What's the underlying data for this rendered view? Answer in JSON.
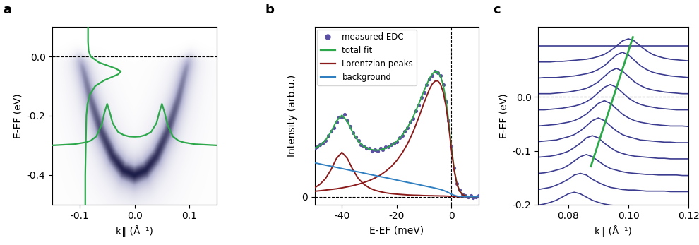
{
  "chart_data": [
    {
      "type": "image",
      "panel_label": "a",
      "x_label": "k∥ (Å⁻¹)",
      "y_label": "E-EF (eV)",
      "xlim": [
        -0.15,
        0.15
      ],
      "xticks": [
        -0.1,
        0.0,
        0.1
      ],
      "ylim": [
        -0.5,
        0.1
      ],
      "yticks": [
        -0.4,
        -0.2,
        0.0
      ],
      "hlines": [
        0
      ],
      "band": {
        "k": [
          -0.11,
          -0.1,
          -0.08,
          -0.06,
          -0.04,
          -0.02,
          0,
          0.02,
          0.04,
          0.06,
          0.08,
          0.1,
          0.11
        ],
        "energy": [
          0.084,
          0,
          -0.144,
          -0.256,
          -0.336,
          -0.384,
          -0.4,
          -0.384,
          -0.336,
          -0.256,
          -0.144,
          0,
          0.084
        ]
      },
      "series": [
        {
          "type": "line",
          "color": "#2ca84a",
          "x": [
            -0.15,
            -0.13,
            -0.11,
            -0.09,
            -0.08,
            -0.07,
            -0.06,
            -0.055,
            -0.05,
            -0.045,
            -0.04,
            -0.03,
            -0.02,
            -0.01,
            0,
            0.01,
            0.02,
            0.03,
            0.04,
            0.045,
            0.05,
            0.055,
            0.06,
            0.07,
            0.08,
            0.09,
            0.11,
            0.13,
            0.15
          ],
          "y": [
            -0.3,
            -0.298,
            -0.296,
            -0.29,
            -0.284,
            -0.27,
            -0.23,
            -0.19,
            -0.16,
            -0.19,
            -0.225,
            -0.255,
            -0.265,
            -0.27,
            -0.271,
            -0.27,
            -0.265,
            -0.255,
            -0.225,
            -0.19,
            -0.16,
            -0.19,
            -0.23,
            -0.27,
            -0.284,
            -0.29,
            -0.296,
            -0.298,
            -0.3
          ]
        },
        {
          "type": "line",
          "color": "#2ca84a",
          "x": [
            -0.085,
            -0.085,
            -0.084,
            -0.08,
            -0.065,
            -0.035,
            -0.025,
            -0.03,
            -0.055,
            -0.072,
            -0.082,
            -0.086,
            -0.088,
            -0.089,
            -0.09,
            -0.09
          ],
          "y": [
            0.1,
            0.05,
            0.02,
            0.0,
            -0.02,
            -0.04,
            -0.05,
            -0.06,
            -0.08,
            -0.1,
            -0.13,
            -0.16,
            -0.2,
            -0.3,
            -0.4,
            -0.5
          ]
        }
      ]
    },
    {
      "type": "line",
      "panel_label": "b",
      "x_label": "E-EF (meV)",
      "y_label": "Intensity (arb.u.)",
      "xlim": [
        -50,
        10
      ],
      "xticks": [
        -40,
        -20,
        0
      ],
      "ylim": [
        -0.06,
        1.3
      ],
      "yticks": [
        0
      ],
      "hlines": [
        0
      ],
      "vlines": [
        0
      ],
      "legend": "upper left",
      "series": [
        {
          "name": "measured EDC",
          "type": "scatter",
          "marker": "o",
          "color": "#5a4fa2",
          "x": [
            -50,
            -49,
            -48,
            -47,
            -46,
            -45,
            -44,
            -43,
            -42,
            -41,
            -40,
            -39,
            -38,
            -37,
            -36,
            -35,
            -34,
            -33,
            -32,
            -31,
            -30,
            -29,
            -28,
            -27,
            -26,
            -25,
            -24,
            -23,
            -22,
            -21,
            -20,
            -19,
            -18,
            -17,
            -16,
            -15,
            -14,
            -13,
            -12,
            -11,
            -10,
            -9,
            -8,
            -7,
            -6,
            -5,
            -4,
            -3,
            -2,
            -1,
            0,
            1,
            2,
            3,
            4,
            5,
            6,
            7,
            8,
            9,
            10
          ],
          "values": [
            0.37,
            0.38,
            0.4,
            0.41,
            0.43,
            0.47,
            0.5,
            0.53,
            0.57,
            0.61,
            0.61,
            0.63,
            0.58,
            0.54,
            0.49,
            0.46,
            0.43,
            0.4,
            0.39,
            0.37,
            0.37,
            0.35,
            0.36,
            0.35,
            0.37,
            0.36,
            0.38,
            0.38,
            0.4,
            0.41,
            0.42,
            0.45,
            0.47,
            0.5,
            0.53,
            0.57,
            0.6,
            0.66,
            0.7,
            0.76,
            0.8,
            0.86,
            0.9,
            0.93,
            0.96,
            0.95,
            0.93,
            0.86,
            0.73,
            0.58,
            0.39,
            0.22,
            0.1,
            0.05,
            0.02,
            0.01,
            0.0,
            0.01,
            -0.01,
            0.0,
            0.01
          ]
        },
        {
          "name": "total fit",
          "type": "line",
          "color": "#2ca84a",
          "x": [
            -50,
            -48,
            -46,
            -44,
            -42,
            -40,
            -38,
            -36,
            -34,
            -32,
            -30,
            -28,
            -26,
            -24,
            -22,
            -20,
            -18,
            -16,
            -14,
            -12,
            -10,
            -8,
            -7,
            -6,
            -5,
            -4,
            -3,
            -2,
            -1,
            0,
            1,
            2,
            3,
            4,
            5,
            6,
            8,
            10
          ],
          "values": [
            0.37,
            0.393,
            0.432,
            0.496,
            0.579,
            0.624,
            0.576,
            0.49,
            0.424,
            0.385,
            0.364,
            0.357,
            0.359,
            0.371,
            0.393,
            0.425,
            0.471,
            0.532,
            0.611,
            0.707,
            0.813,
            0.908,
            0.941,
            0.958,
            0.954,
            0.923,
            0.854,
            0.74,
            0.576,
            0.383,
            0.213,
            0.102,
            0.044,
            0.018,
            0.007,
            0.003,
            0,
            0
          ]
        },
        {
          "name": "Lorentzian peaks",
          "type": "line",
          "color": "#8b1a1a",
          "x": [
            -50,
            -48,
            -46,
            -44,
            -42,
            -40,
            -38,
            -36,
            -34,
            -32,
            -30,
            -28,
            -26,
            -24,
            -22,
            -20,
            -18,
            -16,
            -14,
            -12,
            -10,
            -8,
            -7,
            -6,
            -5,
            -4,
            -3,
            -2,
            -1,
            0,
            1,
            2,
            3,
            4,
            5,
            6,
            8,
            10
          ],
          "values": [
            [
              0.068,
              0.096,
              0.139,
              0.207,
              0.293,
              0.34,
              0.293,
              0.207,
              0.139,
              0.096,
              0.068,
              0.05,
              0.039,
              0.03,
              0.024,
              0.02,
              0.017,
              0.014,
              0.012,
              0.011,
              0.009,
              0.008,
              0.008,
              0.007,
              0.007,
              0.006,
              0.006,
              0.005,
              0.004,
              0.003,
              0.002,
              0.001,
              0,
              0,
              0,
              0,
              0,
              0
            ],
            [
              0.042,
              0.046,
              0.051,
              0.056,
              0.061,
              0.068,
              0.076,
              0.085,
              0.096,
              0.109,
              0.124,
              0.143,
              0.166,
              0.195,
              0.231,
              0.277,
              0.335,
              0.407,
              0.497,
              0.604,
              0.72,
              0.825,
              0.863,
              0.885,
              0.887,
              0.861,
              0.8,
              0.694,
              0.541,
              0.36,
              0.201,
              0.096,
              0.042,
              0.017,
              0.007,
              0.003,
              0,
              0
            ]
          ]
        },
        {
          "name": "background",
          "type": "line",
          "color": "#2f7fc1",
          "x": [
            -50,
            -48,
            -46,
            -44,
            -42,
            -40,
            -38,
            -36,
            -34,
            -32,
            -30,
            -28,
            -26,
            -24,
            -22,
            -20,
            -18,
            -16,
            -14,
            -12,
            -10,
            -8,
            -7,
            -6,
            -5,
            -4,
            -3,
            -2,
            -1,
            0,
            1,
            2,
            3,
            4,
            5,
            6,
            8,
            10
          ],
          "values": [
            0.26,
            0.251,
            0.242,
            0.234,
            0.225,
            0.216,
            0.207,
            0.198,
            0.19,
            0.181,
            0.172,
            0.163,
            0.154,
            0.146,
            0.137,
            0.128,
            0.119,
            0.11,
            0.102,
            0.093,
            0.084,
            0.075,
            0.071,
            0.066,
            0.061,
            0.056,
            0.049,
            0.041,
            0.031,
            0.02,
            0.011,
            0.005,
            0.002,
            0.001,
            0,
            0,
            0,
            0
          ]
        }
      ]
    },
    {
      "type": "line",
      "panel_label": "c",
      "x_label": "k∥ (Å⁻¹)",
      "y_label": "E-EF (eV)",
      "xlim": [
        0.07,
        0.12
      ],
      "xticks": [
        {
          "value": 0.08,
          "label": "0.08"
        },
        {
          "value": 0.1,
          "label": "0.10"
        },
        {
          "value": 0.12,
          "label": "0.12"
        }
      ],
      "ylim": [
        -0.2,
        0.13
      ],
      "yticks": [
        -0.2,
        -0.1,
        0.0
      ],
      "hlines": [
        0
      ],
      "color": "#3b3b8f",
      "x": [
        0.07,
        0.072,
        0.074,
        0.076,
        0.078,
        0.08,
        0.082,
        0.084,
        0.086,
        0.088,
        0.09,
        0.092,
        0.094,
        0.096,
        0.098,
        0.1,
        0.102,
        0.104,
        0.106,
        0.108,
        0.11,
        0.112,
        0.114,
        0.116,
        0.118,
        0.12
      ],
      "series": [
        {
          "offset": 0.095,
          "values": [
            0,
            0,
            0,
            0,
            0,
            0,
            0,
            0,
            0,
            0,
            0,
            0,
            0,
            0,
            0,
            0,
            0,
            0,
            0,
            0,
            0,
            0,
            0,
            0,
            0,
            0
          ]
        },
        {
          "offset": 0.063,
          "values": [
            0.002,
            0.002,
            0.002,
            0.003,
            0.003,
            0.004,
            0.005,
            0.006,
            0.007,
            0.009,
            0.012,
            0.016,
            0.023,
            0.031,
            0.041,
            0.045,
            0.041,
            0.031,
            0.023,
            0.016,
            0.012,
            0.009,
            0.007,
            0.006,
            0.005,
            0.004
          ]
        },
        {
          "offset": 0.033,
          "values": [
            0.002,
            0.003,
            0.003,
            0.003,
            0.004,
            0.005,
            0.006,
            0.008,
            0.01,
            0.013,
            0.018,
            0.025,
            0.035,
            0.045,
            0.05,
            0.045,
            0.035,
            0.025,
            0.018,
            0.013,
            0.01,
            0.008,
            0.006,
            0.005,
            0.004,
            0.003
          ]
        },
        {
          "offset": 0.003,
          "values": [
            0.003,
            0.003,
            0.003,
            0.004,
            0.005,
            0.006,
            0.008,
            0.01,
            0.013,
            0.018,
            0.025,
            0.035,
            0.045,
            0.05,
            0.045,
            0.035,
            0.025,
            0.018,
            0.013,
            0.01,
            0.008,
            0.006,
            0.005,
            0.004,
            0.003,
            0.003
          ]
        },
        {
          "offset": -0.027,
          "values": [
            0.003,
            0.003,
            0.004,
            0.005,
            0.006,
            0.008,
            0.01,
            0.013,
            0.018,
            0.025,
            0.035,
            0.045,
            0.05,
            0.045,
            0.035,
            0.025,
            0.018,
            0.013,
            0.01,
            0.008,
            0.006,
            0.005,
            0.004,
            0.003,
            0.003,
            0.003
          ]
        },
        {
          "offset": -0.057,
          "values": [
            0.003,
            0.004,
            0.005,
            0.006,
            0.008,
            0.01,
            0.013,
            0.018,
            0.025,
            0.035,
            0.045,
            0.05,
            0.045,
            0.035,
            0.025,
            0.018,
            0.013,
            0.01,
            0.008,
            0.006,
            0.005,
            0.004,
            0.003,
            0.003,
            0.003,
            0.002
          ]
        },
        {
          "offset": -0.087,
          "values": [
            0.004,
            0.005,
            0.006,
            0.007,
            0.01,
            0.013,
            0.017,
            0.024,
            0.033,
            0.043,
            0.048,
            0.043,
            0.033,
            0.024,
            0.017,
            0.013,
            0.01,
            0.007,
            0.006,
            0.005,
            0.004,
            0.003,
            0.003,
            0.002,
            0.002,
            0.002
          ]
        },
        {
          "offset": -0.117,
          "values": [
            0.005,
            0.006,
            0.007,
            0.009,
            0.012,
            0.016,
            0.023,
            0.031,
            0.041,
            0.045,
            0.041,
            0.031,
            0.023,
            0.016,
            0.012,
            0.009,
            0.007,
            0.006,
            0.005,
            0.004,
            0.003,
            0.003,
            0.002,
            0.002,
            0.002,
            0.002
          ]
        },
        {
          "offset": -0.147,
          "values": [
            0.005,
            0.006,
            0.008,
            0.011,
            0.014,
            0.02,
            0.028,
            0.036,
            0.04,
            0.036,
            0.028,
            0.02,
            0.014,
            0.011,
            0.008,
            0.006,
            0.005,
            0.004,
            0.003,
            0.003,
            0.002,
            0.002,
            0.002,
            0.002,
            0.001,
            0.001
          ]
        },
        {
          "offset": -0.177,
          "values": [
            0.005,
            0.007,
            0.009,
            0.013,
            0.018,
            0.024,
            0.032,
            0.035,
            0.032,
            0.024,
            0.018,
            0.013,
            0.009,
            0.007,
            0.005,
            0.004,
            0.004,
            0.003,
            0.002,
            0.002,
            0.002,
            0.002,
            0.001,
            0.001,
            0.001,
            0.001
          ]
        },
        {
          "offset": -0.207,
          "values": [
            0.006,
            0.008,
            0.011,
            0.015,
            0.021,
            0.027,
            0.03,
            0.027,
            0.021,
            0.015,
            0.011,
            0.008,
            0.006,
            0.005,
            0.004,
            0.003,
            0.002,
            0.002,
            0.002,
            0.002,
            0.001,
            0.001,
            0.001,
            0.001,
            0.001,
            0.001
          ]
        }
      ],
      "fit_line": {
        "color": "#2ca84a",
        "x": [
          0.0875,
          0.1015
        ],
        "y": [
          -0.129,
          0.111
        ]
      }
    }
  ]
}
